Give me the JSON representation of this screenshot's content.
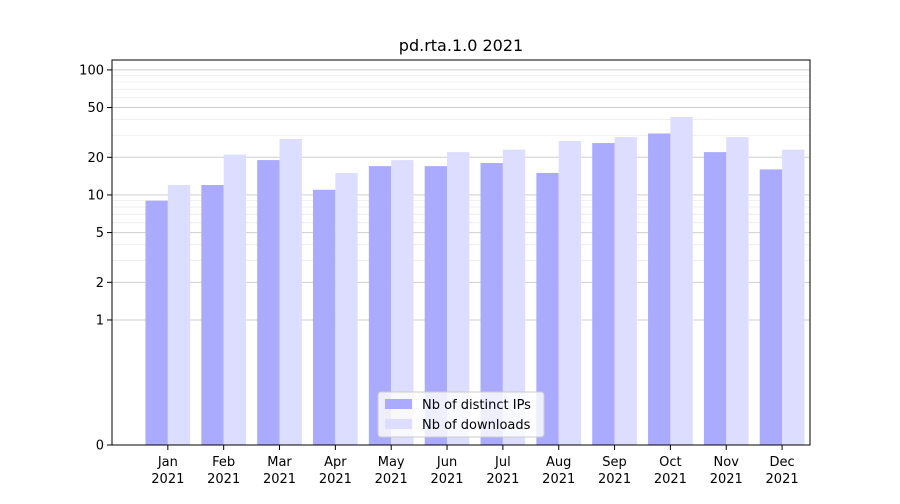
{
  "chart_data": {
    "type": "bar",
    "title": "pd.rta.1.0 2021",
    "xlabel": "",
    "ylabel": "",
    "y_scale": "symlog",
    "ylim": [
      0,
      120
    ],
    "y_ticks": [
      0,
      1,
      2,
      5,
      10,
      20,
      50,
      100
    ],
    "y_tick_labels": [
      "0",
      "1",
      "2",
      "5",
      "10",
      "20",
      "50",
      "100"
    ],
    "grid": "horizontal",
    "legend_position": "bottom-center",
    "categories": [
      "Jan\n2021",
      "Feb\n2021",
      "Mar\n2021",
      "Apr\n2021",
      "May\n2021",
      "Jun\n2021",
      "Jul\n2021",
      "Aug\n2021",
      "Sep\n2021",
      "Oct\n2021",
      "Nov\n2021",
      "Dec\n2021"
    ],
    "series": [
      {
        "name": "Nb of distinct IPs",
        "color": "#aaaaff",
        "values": [
          9,
          12,
          19,
          11,
          17,
          17,
          18,
          15,
          26,
          31,
          22,
          16
        ]
      },
      {
        "name": "Nb of downloads",
        "color": "#ddddff",
        "values": [
          12,
          21,
          28,
          15,
          19,
          22,
          23,
          27,
          29,
          42,
          29,
          23
        ]
      }
    ]
  }
}
